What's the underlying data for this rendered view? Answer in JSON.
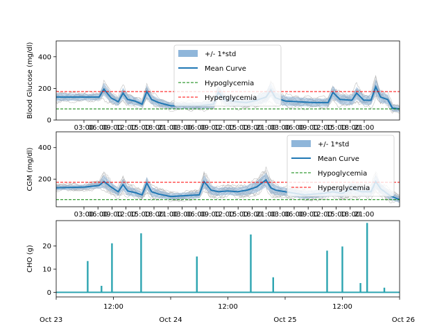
{
  "chart_data": [
    {
      "type": "line",
      "ylabel": "Blood Glucose (mg/dl)",
      "ylim": [
        0,
        500
      ],
      "yticks": [
        0,
        200,
        400
      ],
      "xticks": [
        "03:00",
        "06:00",
        "09:00",
        "12:00",
        "15:00",
        "18:00",
        "21:00",
        "03:00",
        "06:00",
        "09:00",
        "12:00",
        "15:00",
        "18:00",
        "21:00",
        "03:00",
        "06:00",
        "09:00",
        "12:00",
        "15:00",
        "18:00",
        "21:00"
      ],
      "legend": {
        "placement": "upper-center",
        "entries": [
          "+/- 1*std",
          "Mean Curve",
          "Hypoglycemia",
          "Hyperglycemia"
        ]
      },
      "hypoglycemia": 70,
      "hyperglycemia": 180,
      "x_hours": [
        0,
        6,
        9,
        10,
        11.5,
        13,
        14,
        15,
        16.5,
        18,
        19,
        20,
        21.5,
        24,
        30,
        33,
        34,
        35.5,
        38,
        40,
        42,
        44,
        45,
        46,
        48,
        54,
        57,
        58,
        59.5,
        62,
        63,
        64.5,
        66,
        67,
        68,
        69.5,
        70.5,
        72
      ],
      "series": [
        {
          "name": "Mean Curve",
          "values": [
            145,
            145,
            145,
            195,
            140,
            115,
            170,
            130,
            120,
            100,
            180,
            130,
            110,
            90,
            90,
            100,
            175,
            125,
            115,
            110,
            125,
            145,
            190,
            140,
            120,
            110,
            110,
            175,
            130,
            125,
            170,
            125,
            125,
            210,
            145,
            130,
            75,
            70
          ]
        },
        {
          "name": "+/- 1*std",
          "values": [
            25,
            20,
            20,
            40,
            30,
            25,
            35,
            30,
            25,
            20,
            40,
            30,
            25,
            20,
            20,
            25,
            40,
            30,
            30,
            25,
            30,
            35,
            45,
            35,
            30,
            25,
            25,
            40,
            30,
            30,
            40,
            30,
            30,
            50,
            35,
            30,
            20,
            20
          ]
        }
      ]
    },
    {
      "type": "line",
      "ylabel": "CGM (mg/dl)",
      "ylim": [
        25,
        500
      ],
      "yticks": [
        200,
        400
      ],
      "xticks": [
        "03:00",
        "06:00",
        "09:00",
        "12:00",
        "15:00",
        "18:00",
        "21:00",
        "03:00",
        "06:00",
        "09:00",
        "12:00",
        "15:00",
        "18:00",
        "21:00",
        "03:00",
        "06:00",
        "09:00",
        "12:00",
        "15:00",
        "18:00",
        "21:00"
      ],
      "legend": {
        "placement": "upper-right",
        "entries": [
          "+/- 1*std",
          "Mean Curve",
          "Hypoglycemia",
          "Hyperglycemia"
        ]
      },
      "hypoglycemia": 70,
      "hyperglycemia": 180,
      "x_hours": [
        0,
        6,
        9,
        10,
        11.5,
        13,
        14,
        15,
        16.5,
        18,
        19,
        20,
        21.5,
        24,
        30,
        31,
        32.5,
        34,
        36,
        38,
        40,
        42,
        44,
        45,
        46,
        48,
        52,
        56,
        58,
        60,
        62,
        64,
        66,
        67,
        68,
        70,
        72
      ],
      "series": [
        {
          "name": "Mean Curve",
          "values": [
            145,
            150,
            160,
            185,
            150,
            120,
            165,
            125,
            115,
            100,
            175,
            120,
            105,
            90,
            100,
            185,
            130,
            120,
            125,
            120,
            130,
            150,
            195,
            145,
            130,
            120,
            100,
            110,
            120,
            110,
            140,
            120,
            120,
            185,
            140,
            95,
            70
          ]
        },
        {
          "name": "+/- 1*std",
          "values": [
            15,
            15,
            20,
            40,
            30,
            25,
            35,
            30,
            25,
            20,
            40,
            30,
            25,
            20,
            20,
            40,
            30,
            25,
            25,
            25,
            30,
            35,
            45,
            35,
            30,
            25,
            25,
            25,
            30,
            25,
            35,
            30,
            30,
            45,
            35,
            25,
            20
          ]
        }
      ]
    },
    {
      "type": "bar",
      "ylabel": "CHO (g)",
      "ylim": [
        -2,
        31
      ],
      "yticks": [
        0,
        10,
        20
      ],
      "xlim_hours": [
        0,
        72
      ],
      "xticks": [
        {
          "hour": 0,
          "label": "Oct 23"
        },
        {
          "hour": 12,
          "label": "12:00"
        },
        {
          "hour": 24,
          "label": "Oct 24"
        },
        {
          "hour": 36,
          "label": "12:00"
        },
        {
          "hour": 48,
          "label": "Oct 25"
        },
        {
          "hour": 60,
          "label": "12:00"
        },
        {
          "hour": 72,
          "label": "Oct 26"
        }
      ],
      "color": "#2ca4b0",
      "x_hours": [
        6.6,
        9.5,
        11.7,
        17.8,
        29.5,
        40.8,
        45.5,
        56.8,
        60.0,
        63.8,
        65.2,
        68.8
      ],
      "values": [
        13.5,
        2.8,
        21.2,
        25.5,
        15.5,
        25.0,
        6.5,
        18.0,
        19.8,
        4.0,
        30.0,
        2.0
      ]
    }
  ],
  "colors": {
    "mean": "#1f77b4",
    "std_band": "#8fb6da",
    "traces": "#a9a9a9",
    "hypo": "#008000",
    "hyper": "#ff0000",
    "cho": "#2ca4b0"
  }
}
